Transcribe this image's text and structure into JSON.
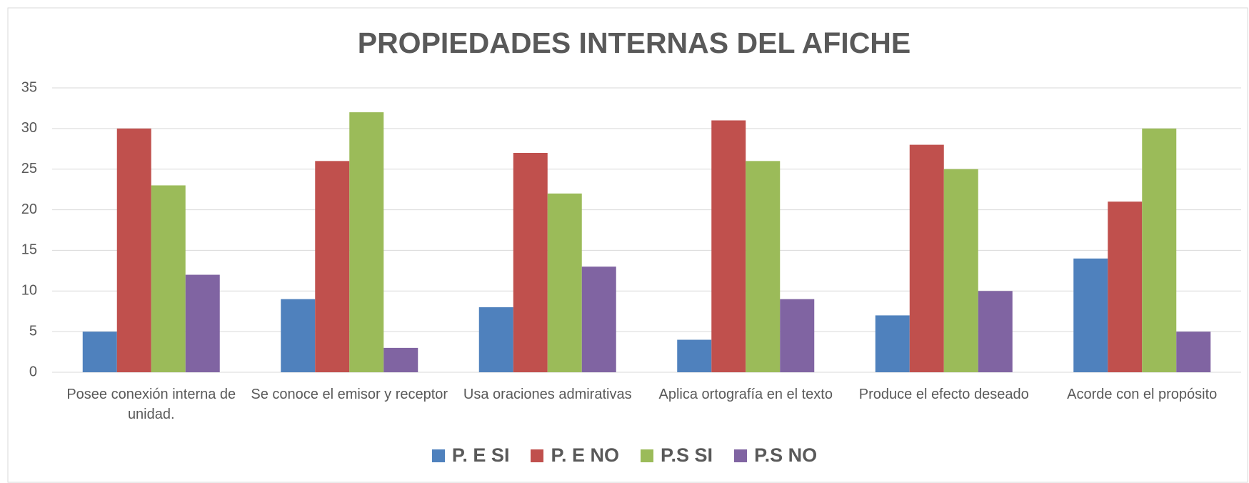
{
  "chart_data": {
    "type": "bar",
    "title": "PROPIEDADES INTERNAS DEL AFICHE",
    "categories": [
      "Posee conexión interna de unidad.",
      "Se conoce el emisor y receptor",
      "Usa oraciones admirativas",
      "Aplica ortografía en el texto",
      "Produce el efecto deseado",
      "Acorde con el propósito"
    ],
    "series": [
      {
        "name": "P. E SI",
        "color": "#4f81bd",
        "values": [
          5,
          9,
          8,
          4,
          7,
          14
        ]
      },
      {
        "name": "P. E NO",
        "color": "#c0504d",
        "values": [
          30,
          26,
          27,
          31,
          28,
          21
        ]
      },
      {
        "name": "P.S SI",
        "color": "#9bbb59",
        "values": [
          23,
          32,
          22,
          26,
          25,
          30
        ]
      },
      {
        "name": "P.S NO",
        "color": "#8064a2",
        "values": [
          12,
          3,
          13,
          9,
          10,
          5
        ]
      }
    ],
    "ylim": [
      0,
      35
    ],
    "yticks": [
      0,
      5,
      10,
      15,
      20,
      25,
      30,
      35
    ],
    "grid": true,
    "legend": "bottom"
  }
}
